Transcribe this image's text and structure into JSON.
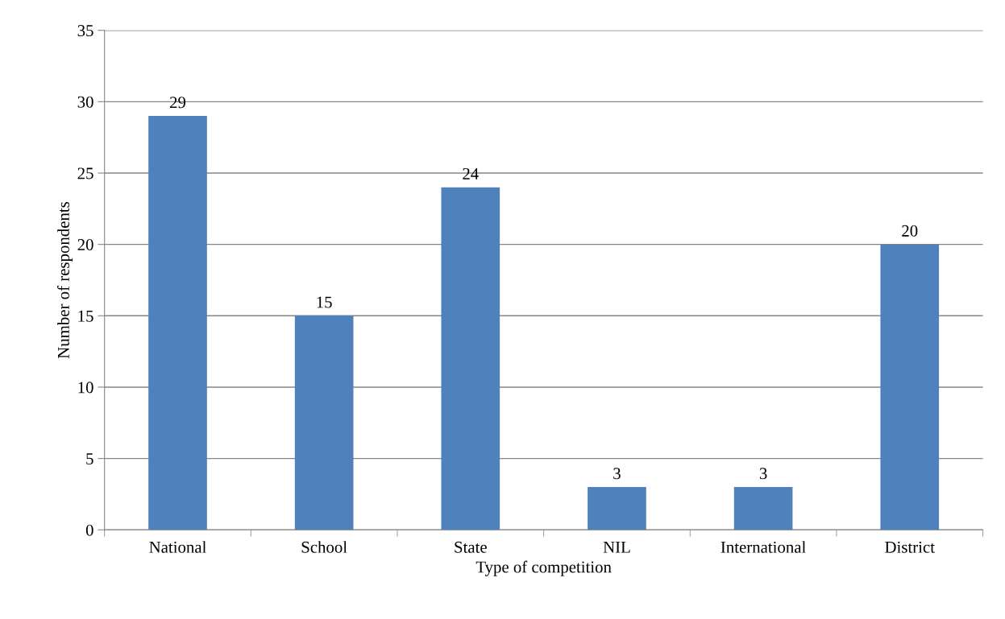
{
  "chart_data": {
    "type": "bar",
    "xlabel": "Type of competition",
    "ylabel": "Number of respondents",
    "categories": [
      "National",
      "School",
      "State",
      "NIL",
      "International",
      "District"
    ],
    "values": [
      29,
      15,
      24,
      3,
      3,
      20
    ],
    "color": "#4f81bd",
    "ylim": [
      0,
      35
    ],
    "yticks": [
      0,
      5,
      10,
      15,
      20,
      25,
      30,
      35
    ],
    "grid": "y",
    "data_labels": true
  }
}
